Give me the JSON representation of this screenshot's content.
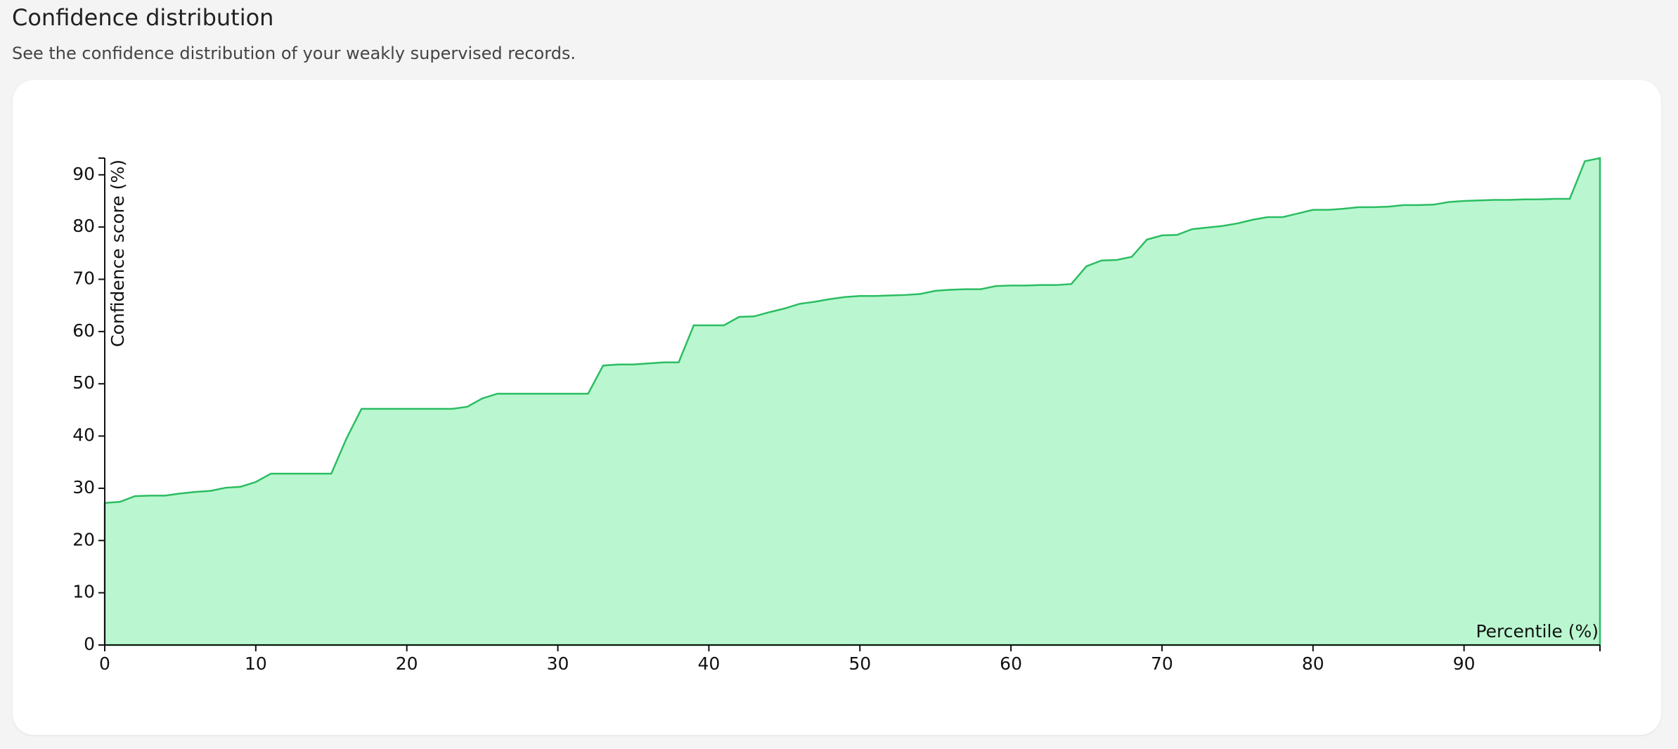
{
  "header": {
    "title": "Confidence distribution",
    "subtitle": "See the confidence distribution of your weakly supervised records."
  },
  "chart_data": {
    "type": "area",
    "xlabel": "Percentile (%)",
    "ylabel": "Confidence score (%)",
    "x": [
      0,
      1,
      2,
      3,
      4,
      5,
      6,
      7,
      8,
      9,
      10,
      11,
      12,
      13,
      14,
      15,
      16,
      17,
      18,
      19,
      20,
      21,
      22,
      23,
      24,
      25,
      26,
      27,
      28,
      29,
      30,
      31,
      32,
      33,
      34,
      35,
      36,
      37,
      38,
      39,
      40,
      41,
      42,
      43,
      44,
      45,
      46,
      47,
      48,
      49,
      50,
      51,
      52,
      53,
      54,
      55,
      56,
      57,
      58,
      59,
      60,
      61,
      62,
      63,
      64,
      65,
      66,
      67,
      68,
      69,
      70,
      71,
      72,
      73,
      74,
      75,
      76,
      77,
      78,
      79,
      80,
      81,
      82,
      83,
      84,
      85,
      86,
      87,
      88,
      89,
      90,
      91,
      92,
      93,
      94,
      95,
      96,
      97,
      98,
      99
    ],
    "values": [
      27.2,
      27.4,
      28.5,
      28.6,
      28.6,
      29.0,
      29.3,
      29.5,
      30.1,
      30.3,
      31.2,
      32.8,
      32.8,
      32.8,
      32.8,
      32.8,
      39.5,
      45.2,
      45.2,
      45.2,
      45.2,
      45.2,
      45.2,
      45.2,
      45.6,
      47.2,
      48.1,
      48.1,
      48.1,
      48.1,
      48.1,
      48.1,
      48.1,
      53.5,
      53.7,
      53.7,
      53.9,
      54.1,
      54.1,
      61.2,
      61.2,
      61.2,
      62.8,
      62.9,
      63.7,
      64.4,
      65.3,
      65.7,
      66.2,
      66.6,
      66.8,
      66.8,
      66.9,
      67.0,
      67.2,
      67.8,
      68.0,
      68.1,
      68.1,
      68.7,
      68.8,
      68.8,
      68.9,
      68.9,
      69.1,
      72.5,
      73.6,
      73.7,
      74.3,
      77.6,
      78.4,
      78.5,
      79.6,
      79.9,
      80.2,
      80.7,
      81.4,
      81.9,
      81.9,
      82.6,
      83.3,
      83.3,
      83.5,
      83.8,
      83.8,
      83.9,
      84.2,
      84.2,
      84.3,
      84.8,
      85.0,
      85.1,
      85.2,
      85.2,
      85.3,
      85.3,
      85.4,
      85.4,
      92.6,
      93.2
    ],
    "color": "#2bbd62",
    "fill": "#baf7d0",
    "xlim": [
      0,
      99
    ],
    "ylim": [
      0,
      93.2
    ],
    "xticks": [
      0,
      10,
      20,
      30,
      40,
      50,
      60,
      70,
      80,
      90
    ],
    "yticks": [
      0,
      10,
      20,
      30,
      40,
      50,
      60,
      70,
      80,
      90
    ]
  }
}
